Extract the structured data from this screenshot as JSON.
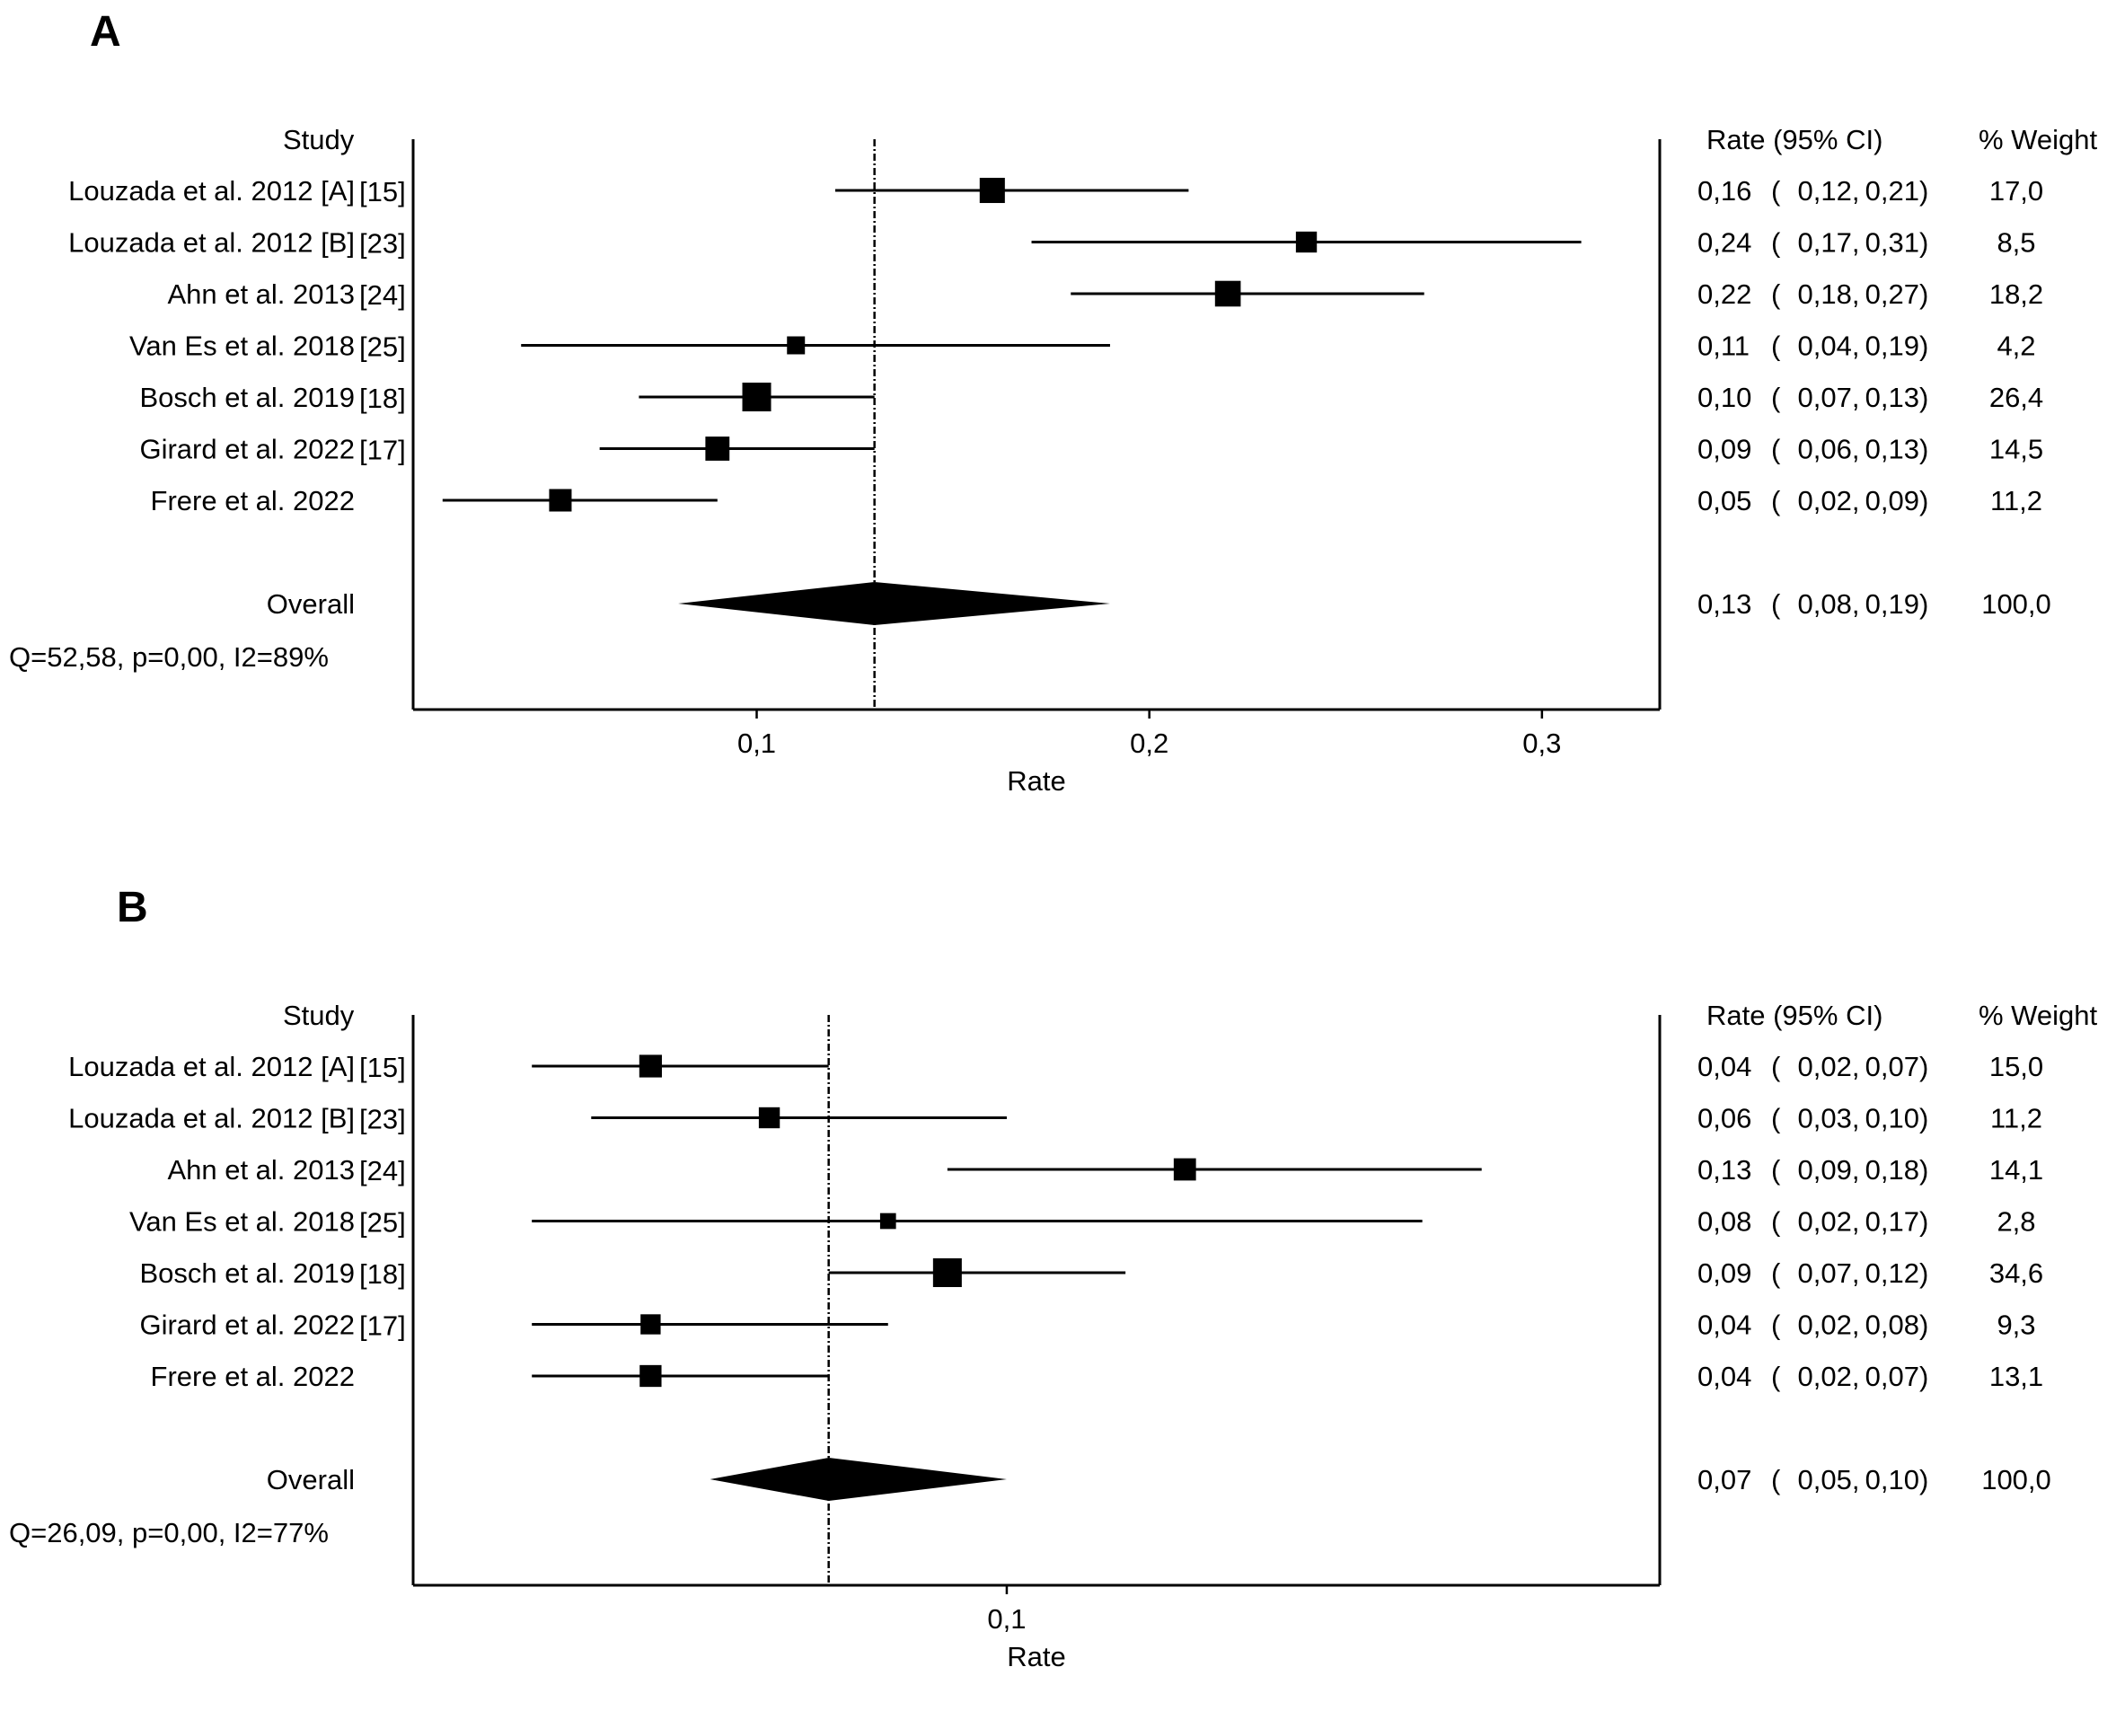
{
  "chart_data": [
    {
      "panel_label": "A",
      "type": "forest",
      "headers": {
        "study": "Study",
        "rate": "Rate (95% CI)",
        "weight": "% Weight"
      },
      "xlabel": "Rate",
      "xticks": [
        0.1,
        0.2,
        0.3
      ],
      "xtick_labels": [
        "0,1",
        "0,2",
        "0,3"
      ],
      "xlim": [
        0.0125,
        0.33
      ],
      "reference_line": 0.13,
      "studies": [
        {
          "name": "Louzada et al. 2012 [A]",
          "ref": "[15]",
          "rate": 0.16,
          "lower": 0.12,
          "upper": 0.21,
          "rate_text": "0,16",
          "lower_text": "0,12",
          "upper_text": "0,21",
          "weight": 17.0,
          "weight_text": "17,0"
        },
        {
          "name": "Louzada et al. 2012 [B]",
          "ref": "[23]",
          "rate": 0.24,
          "lower": 0.17,
          "upper": 0.31,
          "rate_text": "0,24",
          "lower_text": "0,17",
          "upper_text": "0,31",
          "weight": 8.5,
          "weight_text": "8,5"
        },
        {
          "name": "Ahn et al. 2013",
          "ref": "[24]",
          "rate": 0.22,
          "lower": 0.18,
          "upper": 0.27,
          "rate_text": "0,22",
          "lower_text": "0,18",
          "upper_text": "0,27",
          "weight": 18.2,
          "weight_text": "18,2"
        },
        {
          "name": "Van Es et al. 2018",
          "ref": "[25]",
          "rate": 0.11,
          "lower": 0.04,
          "upper": 0.19,
          "rate_text": "0,11",
          "lower_text": "0,04",
          "upper_text": "0,19",
          "weight": 4.2,
          "weight_text": "4,2"
        },
        {
          "name": "Bosch et al. 2019",
          "ref": "[18]",
          "rate": 0.1,
          "lower": 0.07,
          "upper": 0.13,
          "rate_text": "0,10",
          "lower_text": "0,07",
          "upper_text": "0,13",
          "weight": 26.4,
          "weight_text": "26,4"
        },
        {
          "name": "Girard et al. 2022",
          "ref": "[17]",
          "rate": 0.09,
          "lower": 0.06,
          "upper": 0.13,
          "rate_text": "0,09",
          "lower_text": "0,06",
          "upper_text": "0,13",
          "weight": 14.5,
          "weight_text": "14,5"
        },
        {
          "name": "Frere et al. 2022",
          "ref": "",
          "rate": 0.05,
          "lower": 0.02,
          "upper": 0.09,
          "rate_text": "0,05",
          "lower_text": "0,02",
          "upper_text": "0,09",
          "weight": 11.2,
          "weight_text": "11,2"
        }
      ],
      "overall": {
        "name": "Overall",
        "rate": 0.13,
        "lower": 0.08,
        "upper": 0.19,
        "rate_text": "0,13",
        "lower_text": "0,08",
        "upper_text": "0,19",
        "weight_text": "100,0"
      },
      "heterogeneity": "Q=52,58, p=0,00, I2=89%"
    },
    {
      "panel_label": "B",
      "type": "forest",
      "headers": {
        "study": "Study",
        "rate": "Rate (95% CI)",
        "weight": "% Weight"
      },
      "xlabel": "Rate",
      "xticks": [
        0.1
      ],
      "xtick_labels": [
        "0,1"
      ],
      "xlim": [
        0.0,
        0.21
      ],
      "reference_line": 0.07,
      "studies": [
        {
          "name": "Louzada et al. 2012 [A]",
          "ref": "[15]",
          "rate": 0.04,
          "lower": 0.02,
          "upper": 0.07,
          "rate_text": "0,04",
          "lower_text": "0,02",
          "upper_text": "0,07",
          "weight": 15.0,
          "weight_text": "15,0"
        },
        {
          "name": "Louzada et al. 2012 [B]",
          "ref": "[23]",
          "rate": 0.06,
          "lower": 0.03,
          "upper": 0.1,
          "rate_text": "0,06",
          "lower_text": "0,03",
          "upper_text": "0,10",
          "weight": 11.2,
          "weight_text": "11,2"
        },
        {
          "name": "Ahn et al. 2013",
          "ref": "[24]",
          "rate": 0.13,
          "lower": 0.09,
          "upper": 0.18,
          "rate_text": "0,13",
          "lower_text": "0,09",
          "upper_text": "0,18",
          "weight": 14.1,
          "weight_text": "14,1"
        },
        {
          "name": "Van Es et al. 2018",
          "ref": "[25]",
          "rate": 0.08,
          "lower": 0.02,
          "upper": 0.17,
          "rate_text": "0,08",
          "lower_text": "0,02",
          "upper_text": "0,17",
          "weight": 2.8,
          "weight_text": "2,8"
        },
        {
          "name": "Bosch et al. 2019",
          "ref": "[18]",
          "rate": 0.09,
          "lower": 0.07,
          "upper": 0.12,
          "rate_text": "0,09",
          "lower_text": "0,07",
          "upper_text": "0,12",
          "weight": 34.6,
          "weight_text": "34,6"
        },
        {
          "name": "Girard et al. 2022",
          "ref": "[17]",
          "rate": 0.04,
          "lower": 0.02,
          "upper": 0.08,
          "rate_text": "0,04",
          "lower_text": "0,02",
          "upper_text": "0,08",
          "weight": 9.3,
          "weight_text": "9,3"
        },
        {
          "name": "Frere et al. 2022",
          "ref": "",
          "rate": 0.04,
          "lower": 0.02,
          "upper": 0.07,
          "rate_text": "0,04",
          "lower_text": "0,02",
          "upper_text": "0,07",
          "weight": 13.1,
          "weight_text": "13,1"
        }
      ],
      "overall": {
        "name": "Overall",
        "rate": 0.07,
        "lower": 0.05,
        "upper": 0.1,
        "rate_text": "0,07",
        "lower_text": "0,05",
        "upper_text": "0,10",
        "weight_text": "100,0"
      },
      "heterogeneity": "Q=26,09, p=0,00, I2=77%"
    }
  ]
}
